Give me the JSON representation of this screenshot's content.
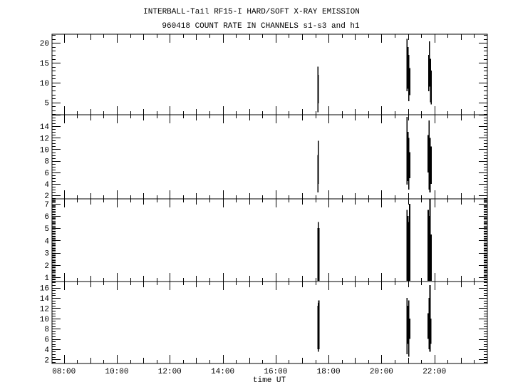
{
  "chart_data": {
    "type": "line",
    "title": "INTERBALL-Tail RF15-I HARD/SOFT X-RAY EMISSION",
    "subtitle": "960418  COUNT RATE IN CHANNELS s1-s3 and h1",
    "xlabel": "time UT",
    "xlim": [
      "07:33",
      "24:00"
    ],
    "x_ticks": [
      "08:00",
      "10:00",
      "12:00",
      "14:00",
      "16:00",
      "18:00",
      "20:00",
      "22:00"
    ],
    "grid": false,
    "color": "#000000",
    "panels": [
      {
        "ylim": [
          1.9,
          22.2
        ],
        "y_ticks": [
          5,
          10,
          15,
          20
        ],
        "y_major": 5,
        "y_minor": 1,
        "segments": [
          [
            "17:36",
            2.5,
            14
          ],
          [
            "17:37",
            4.8,
            12
          ],
          [
            "20:58",
            7.8,
            21
          ],
          [
            "21:00",
            8.5,
            19
          ],
          [
            "21:02",
            5.3,
            17
          ],
          [
            "21:04",
            6.8,
            13.7
          ],
          [
            "21:47",
            7.8,
            17
          ],
          [
            "21:49",
            9,
            20.4
          ],
          [
            "21:51",
            5,
            16
          ],
          [
            "21:53",
            4.5,
            13
          ]
        ]
      },
      {
        "ylim": [
          1.4,
          16
        ],
        "y_ticks": [
          2,
          4,
          6,
          8,
          10,
          12,
          14
        ],
        "y_major": 2,
        "y_minor": 0.5,
        "segments": [
          [
            "17:36",
            2.5,
            9
          ],
          [
            "17:37",
            4,
            11.5
          ],
          [
            "20:58",
            3.9,
            15.6
          ],
          [
            "21:00",
            4.5,
            13
          ],
          [
            "21:02",
            3,
            12
          ],
          [
            "21:04",
            5,
            9.5
          ],
          [
            "21:46",
            6,
            12.5
          ],
          [
            "21:48",
            3,
            15
          ],
          [
            "21:50",
            2.5,
            12
          ],
          [
            "21:53",
            4,
            10.5
          ]
        ]
      },
      {
        "ylim": [
          0.65,
          7.4
        ],
        "y_ticks": [
          1,
          2,
          3,
          4,
          5,
          6,
          7
        ],
        "y_major": 1,
        "y_minor": 0.1,
        "segments": [
          [
            "17:36",
            0.7,
            5
          ],
          [
            "17:37",
            0.7,
            5.5
          ],
          [
            "17:38",
            0.7,
            5
          ],
          [
            "20:58",
            0.7,
            6.5
          ],
          [
            "21:00",
            0.7,
            6
          ],
          [
            "21:02",
            0.7,
            5.5
          ],
          [
            "21:04",
            0.7,
            7
          ],
          [
            "21:46",
            0.7,
            6.5
          ],
          [
            "21:48",
            0.7,
            6
          ],
          [
            "21:50",
            0.7,
            7.4
          ],
          [
            "21:53",
            0.7,
            4.5
          ]
        ]
      },
      {
        "ylim": [
          1.2,
          17.2
        ],
        "y_ticks": [
          2,
          4,
          6,
          8,
          10,
          12,
          14,
          16
        ],
        "y_major": 2,
        "y_minor": 0.5,
        "segments": [
          [
            "17:36",
            4,
            12.5
          ],
          [
            "17:37",
            3.5,
            13
          ],
          [
            "17:38",
            4,
            13.5
          ],
          [
            "20:58",
            3,
            14
          ],
          [
            "21:00",
            5,
            12.5
          ],
          [
            "21:02",
            2.5,
            13.5
          ],
          [
            "21:04",
            6,
            10
          ],
          [
            "21:46",
            6,
            11
          ],
          [
            "21:48",
            4,
            14
          ],
          [
            "21:50",
            3.5,
            16.5
          ],
          [
            "21:52",
            5,
            10
          ]
        ]
      }
    ]
  }
}
